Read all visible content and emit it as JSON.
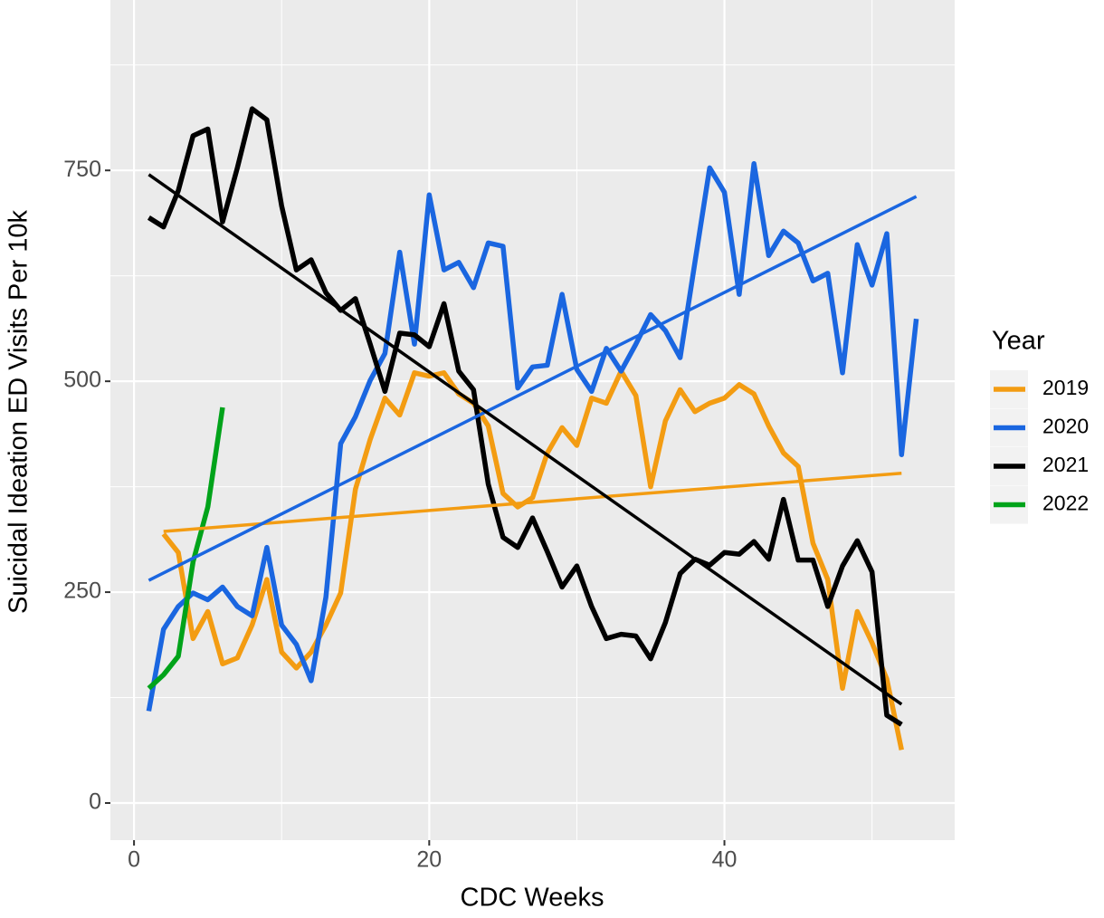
{
  "chart_data": {
    "type": "line",
    "xlabel": "CDC Weeks",
    "ylabel": "Suicidal Ideation ED Visits Per 10k",
    "legend_title": "Year",
    "legend_position": "right",
    "grid": true,
    "xlim": [
      -1.6,
      55.6
    ],
    "xticks": [
      0,
      20,
      40
    ],
    "ylim": [
      -44,
      952
    ],
    "yticks": [
      0,
      250,
      500,
      750
    ],
    "series": [
      {
        "name": "2019",
        "color": "#f39c12",
        "x": [
          2,
          3,
          4,
          5,
          6,
          7,
          8,
          9,
          10,
          11,
          12,
          13,
          14,
          15,
          16,
          17,
          18,
          19,
          20,
          21,
          22,
          23,
          24,
          25,
          26,
          27,
          28,
          29,
          30,
          31,
          32,
          33,
          34,
          35,
          36,
          37,
          38,
          39,
          40,
          41,
          42,
          43,
          44,
          45,
          46,
          47,
          48,
          49,
          50,
          51,
          52
        ],
        "values": [
          319,
          297,
          195,
          227,
          165,
          172,
          211,
          265,
          179,
          160,
          179,
          211,
          249,
          372,
          431,
          480,
          460,
          510,
          506,
          510,
          485,
          474,
          447,
          367,
          351,
          362,
          415,
          445,
          424,
          480,
          474,
          512,
          483,
          375,
          453,
          490,
          464,
          474,
          480,
          496,
          485,
          447,
          415,
          399,
          308,
          265,
          136,
          227,
          190,
          147,
          63
        ],
        "trend": {
          "x": [
            2,
            52
          ],
          "values": [
            322,
            391
          ]
        }
      },
      {
        "name": "2020",
        "color": "#1a66e0",
        "x": [
          1,
          2,
          3,
          4,
          5,
          6,
          7,
          8,
          9,
          10,
          11,
          12,
          13,
          14,
          15,
          16,
          17,
          18,
          19,
          20,
          21,
          22,
          23,
          24,
          25,
          26,
          27,
          28,
          29,
          30,
          31,
          32,
          33,
          34,
          35,
          36,
          37,
          38,
          39,
          40,
          41,
          42,
          43,
          44,
          45,
          46,
          47,
          48,
          49,
          50,
          51,
          52,
          53
        ],
        "values": [
          109,
          206,
          233,
          249,
          241,
          256,
          233,
          222,
          303,
          211,
          188,
          145,
          244,
          426,
          458,
          501,
          533,
          653,
          544,
          721,
          632,
          641,
          611,
          664,
          660,
          492,
          517,
          519,
          603,
          514,
          488,
          539,
          512,
          544,
          579,
          560,
          528,
          641,
          753,
          724,
          603,
          758,
          649,
          678,
          664,
          619,
          628,
          510,
          662,
          614,
          675,
          413,
          574
        ],
        "trend": {
          "x": [
            1,
            53
          ],
          "values": [
            264,
            719
          ]
        }
      },
      {
        "name": "2021",
        "color": "#000000",
        "x": [
          1,
          2,
          3,
          4,
          5,
          6,
          7,
          8,
          9,
          10,
          11,
          12,
          13,
          14,
          15,
          16,
          17,
          18,
          19,
          20,
          21,
          22,
          23,
          24,
          25,
          26,
          27,
          28,
          29,
          30,
          31,
          32,
          33,
          34,
          35,
          36,
          37,
          38,
          39,
          40,
          41,
          42,
          43,
          44,
          45,
          46,
          47,
          48,
          49,
          50,
          51,
          52
        ],
        "values": [
          694,
          683,
          726,
          791,
          799,
          689,
          753,
          823,
          810,
          708,
          632,
          644,
          605,
          584,
          598,
          544,
          488,
          557,
          555,
          541,
          592,
          512,
          490,
          378,
          315,
          303,
          338,
          298,
          256,
          281,
          233,
          195,
          200,
          198,
          171,
          214,
          272,
          289,
          282,
          297,
          295,
          310,
          289,
          360,
          288,
          288,
          233,
          281,
          311,
          274,
          104,
          93
        ],
        "trend": {
          "x": [
            1,
            52
          ],
          "values": [
            745,
            117
          ]
        }
      },
      {
        "name": "2022",
        "color": "#00a31a",
        "x": [
          1,
          2,
          3,
          4,
          5,
          6
        ],
        "values": [
          136,
          152,
          174,
          286,
          351,
          469
        ]
      }
    ]
  }
}
